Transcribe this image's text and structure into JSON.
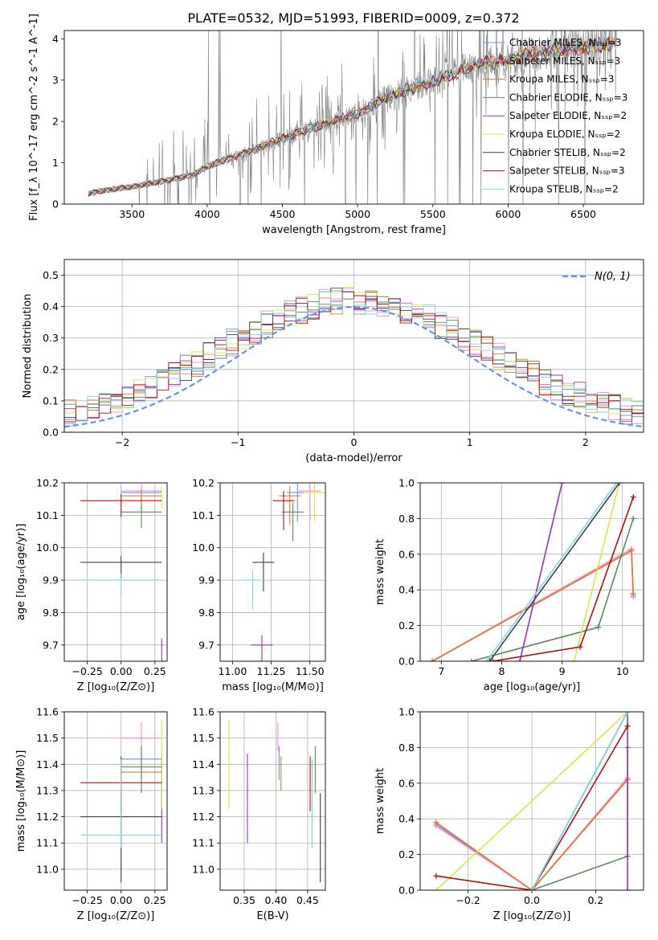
{
  "figure_title": "PLATE=0532, MJD=51993, FIBERID=0009, z=0.372",
  "colors": {
    "grid": "#b0b0b0",
    "gaussian": "#6495ed",
    "data_spectrum": "#808080",
    "Chabrier MILES": "#6495ed",
    "Salpeter MILES": "#ff88cc",
    "Kroupa MILES": "#e07a30",
    "Chabrier ELODIE": "#5a8a5a",
    "Salpeter ELODIE": "#9b30c0",
    "Kroupa ELODIE": "#d4e84a",
    "Chabrier STELIB": "#404040",
    "Salpeter STELIB": "#b01010",
    "Kroupa STELIB": "#80d8e0"
  },
  "chart_data": [
    {
      "id": "spectrum",
      "type": "line",
      "title": "PLATE=0532, MJD=51993, FIBERID=0009, z=0.372",
      "xlabel": "wavelength [Angstrom, rest frame]",
      "ylabel": "Flux [f_λ 10^-17 erg cm^-2 s^-1 A^-1]",
      "xlim": [
        3050,
        6900
      ],
      "ylim": [
        0,
        4.2
      ],
      "xticks": [
        3500,
        4000,
        4500,
        5000,
        5500,
        6000,
        6500
      ],
      "yticks": [
        0,
        1,
        2,
        3,
        4
      ],
      "legend_position": "top-right",
      "legend": [
        {
          "name": "Chabrier MILES",
          "nssp": 3
        },
        {
          "name": "Salpeter MILES",
          "nssp": 3
        },
        {
          "name": "Kroupa MILES",
          "nssp": 3
        },
        {
          "name": "Chabrier ELODIE",
          "nssp": 3
        },
        {
          "name": "Salpeter ELODIE",
          "nssp": 2
        },
        {
          "name": "Kroupa ELODIE",
          "nssp": 2
        },
        {
          "name": "Chabrier STELIB",
          "nssp": 2
        },
        {
          "name": "Salpeter STELIB",
          "nssp": 3
        },
        {
          "name": "Kroupa STELIB",
          "nssp": 2
        }
      ],
      "continuum": {
        "x": [
          3210,
          3300,
          3500,
          3700,
          3900,
          4000,
          4100,
          4300,
          4500,
          4700,
          4850,
          5000,
          5200,
          5400,
          5600,
          5800,
          6000,
          6200,
          6400,
          6600,
          6720
        ],
        "y": [
          0.25,
          0.32,
          0.42,
          0.55,
          0.7,
          0.9,
          1.05,
          1.3,
          1.6,
          1.85,
          2.0,
          2.2,
          2.6,
          2.85,
          3.1,
          3.4,
          3.5,
          3.65,
          3.75,
          3.85,
          3.9
        ]
      }
    },
    {
      "id": "residuals",
      "type": "line",
      "xlabel": "(data-model)/error",
      "ylabel": "Normed distribution",
      "xlim": [
        -2.5,
        2.5
      ],
      "ylim": [
        0,
        0.55
      ],
      "xticks": [
        -2,
        -1,
        0,
        1,
        2
      ],
      "yticks": [
        0.0,
        0.1,
        0.2,
        0.3,
        0.4,
        0.5
      ],
      "legend_position": "top-right",
      "legend": [
        "N(0, 1)"
      ]
    },
    {
      "id": "age_vs_Z",
      "type": "scatter",
      "xlabel": "Z [log10(Z/Z⊙)]",
      "ylabel": "age [log10(age/yr)]",
      "xlim": [
        -0.42,
        0.34
      ],
      "ylim": [
        9.65,
        10.2
      ],
      "xticks": [
        -0.25,
        0.0,
        0.25
      ],
      "yticks": [
        9.7,
        9.8,
        9.9,
        10.0,
        10.1,
        10.2
      ]
    },
    {
      "id": "age_vs_mass",
      "type": "scatter",
      "xlabel": "mass [log10(M/M⊙)]",
      "xlim": [
        10.92,
        11.6
      ],
      "ylim": [
        9.65,
        10.2
      ],
      "xticks": [
        11.0,
        11.25,
        11.5
      ],
      "yticks": [
        9.7,
        9.8,
        9.9,
        10.0,
        10.1,
        10.2
      ]
    },
    {
      "id": "weight_vs_age",
      "type": "line",
      "xlabel": "age [log10(age/yr)]",
      "ylabel": "mass weight",
      "xlim": [
        6.65,
        10.35
      ],
      "ylim": [
        0,
        1.0
      ],
      "xticks": [
        7,
        8,
        9,
        10
      ],
      "yticks": [
        0.0,
        0.2,
        0.4,
        0.6,
        0.8,
        1.0
      ]
    },
    {
      "id": "mass_vs_Z",
      "type": "scatter",
      "xlabel": "Z [log10(Z/Z⊙)]",
      "ylabel": "mass [log10(M/M⊙)]",
      "xlim": [
        -0.42,
        0.34
      ],
      "ylim": [
        10.92,
        11.6
      ],
      "xticks": [
        -0.25,
        0.0,
        0.25
      ],
      "yticks": [
        11.0,
        11.1,
        11.2,
        11.3,
        11.4,
        11.5,
        11.6
      ]
    },
    {
      "id": "mass_vs_ebv",
      "type": "scatter",
      "xlabel": "E(B-V)",
      "xlim": [
        0.312,
        0.478
      ],
      "ylim": [
        10.92,
        11.6
      ],
      "xticks": [
        0.35,
        0.4,
        0.45
      ],
      "yticks": [
        11.0,
        11.1,
        11.2,
        11.3,
        11.4,
        11.5,
        11.6
      ]
    },
    {
      "id": "weight_vs_Z",
      "type": "line",
      "xlabel": "Z [log10(Z/Z⊙)]",
      "ylabel": "mass weight",
      "xlim": [
        -0.35,
        0.35
      ],
      "ylim": [
        0,
        1.0
      ],
      "xticks": [
        -0.2,
        0.0,
        0.2
      ],
      "yticks": [
        0.0,
        0.2,
        0.4,
        0.6,
        0.8,
        1.0
      ]
    }
  ],
  "models": [
    {
      "name": "Chabrier MILES",
      "Z": [
        0.0,
        0.3
      ],
      "age": 10.17,
      "mass": 11.42,
      "ebv": 0.405,
      "mass_err": [
        11.34,
        11.47
      ],
      "wa": [
        [
          6.85,
          0.0
        ],
        [
          10.15,
          0.62
        ],
        [
          10.18,
          0.37
        ]
      ],
      "wz": [
        [
          -0.3,
          0.37
        ],
        [
          0.0,
          0.0
        ],
        [
          0.3,
          0.62
        ]
      ]
    },
    {
      "name": "Salpeter MILES",
      "Z": [
        0.0,
        0.3
      ],
      "age": 10.175,
      "mass": 11.5,
      "ebv": 0.403,
      "mass_err": [
        11.45,
        11.56
      ],
      "wa": [
        [
          6.85,
          0.0
        ],
        [
          10.15,
          0.63
        ],
        [
          10.18,
          0.36
        ]
      ],
      "wz": [
        [
          -0.3,
          0.36
        ],
        [
          0.0,
          0.0
        ],
        [
          0.3,
          0.63
        ]
      ]
    },
    {
      "name": "Kroupa MILES",
      "Z": [
        0.0,
        0.3
      ],
      "age": 10.16,
      "mass": 11.37,
      "ebv": 0.408,
      "mass_err": [
        11.3,
        11.43
      ],
      "wa": [
        [
          6.85,
          0.0
        ],
        [
          10.15,
          0.62
        ],
        [
          10.18,
          0.38
        ]
      ],
      "wz": [
        [
          -0.3,
          0.38
        ],
        [
          0.0,
          0.0
        ],
        [
          0.3,
          0.62
        ]
      ]
    },
    {
      "name": "Chabrier ELODIE",
      "Z": [
        0.0,
        0.3
      ],
      "age": 10.11,
      "mass": 11.39,
      "ebv": 0.462,
      "mass_err": [
        11.29,
        11.47
      ],
      "wa": [
        [
          7.5,
          0.0
        ],
        [
          9.6,
          0.19
        ],
        [
          10.18,
          0.8
        ]
      ],
      "wz": [
        [
          0.0,
          0.0
        ],
        [
          0.3,
          0.19
        ],
        [
          0.3,
          0.8
        ]
      ]
    },
    {
      "name": "Salpeter ELODIE",
      "Z": [
        0.3
      ],
      "age": 9.7,
      "mass": 11.19,
      "ebv": 0.355,
      "mass_err": [
        11.1,
        11.44
      ],
      "wa": [
        [
          8.3,
          0.0
        ],
        [
          9.0,
          1.0
        ]
      ],
      "wz": [
        [
          0.3,
          0.0
        ],
        [
          0.3,
          1.0
        ]
      ]
    },
    {
      "name": "Kroupa ELODIE",
      "Z": [
        0.3
      ],
      "age": 10.17,
      "mass": 11.53,
      "ebv": 0.326,
      "mass_err": [
        11.23,
        11.57
      ],
      "wa": [
        [
          9.2,
          0.0
        ],
        [
          9.95,
          1.0
        ]
      ],
      "wz": [
        [
          -0.3,
          0.0
        ],
        [
          0.3,
          1.0
        ]
      ]
    },
    {
      "name": "Chabrier STELIB",
      "Z": [
        -0.3,
        0.3
      ],
      "age": 9.955,
      "mass": 11.2,
      "ebv": 0.47,
      "mass_err": [
        10.95,
        11.29
      ],
      "wa": [
        [
          7.8,
          0.0
        ],
        [
          9.95,
          1.0
        ]
      ],
      "wz": [
        [
          0.0,
          0.0
        ],
        [
          0.3,
          1.0
        ]
      ]
    },
    {
      "name": "Salpeter STELIB",
      "Z": [
        -0.3,
        0.3
      ],
      "age": 10.145,
      "mass": 11.33,
      "ebv": 0.454,
      "mass_err": [
        11.22,
        11.43
      ],
      "wa": [
        [
          7.85,
          0.0
        ],
        [
          9.3,
          0.08
        ],
        [
          10.18,
          0.92
        ]
      ],
      "wz": [
        [
          -0.3,
          0.08
        ],
        [
          0.0,
          0.0
        ],
        [
          0.3,
          0.92
        ]
      ]
    },
    {
      "name": "Kroupa STELIB",
      "Z": [
        -0.3,
        0.3
      ],
      "age": 9.9,
      "mass": 11.13,
      "ebv": 0.457,
      "mass_err": [
        11.08,
        11.42
      ],
      "wa": [
        [
          7.75,
          0.0
        ],
        [
          9.9,
          1.0
        ]
      ],
      "wz": [
        [
          0.0,
          0.0
        ],
        [
          0.3,
          1.0
        ]
      ]
    }
  ]
}
